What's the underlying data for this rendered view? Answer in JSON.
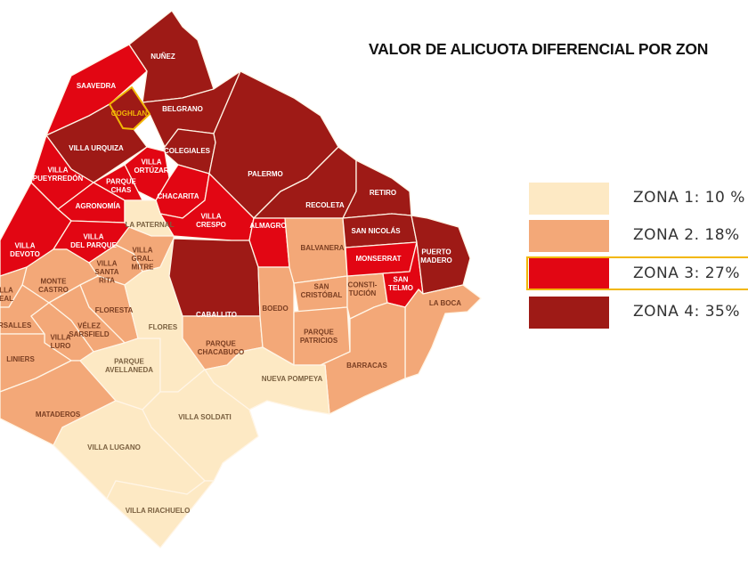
{
  "title": "VALOR DE ALICUOTA DIFERENCIAL POR ZON",
  "colors": {
    "zona_1": "#fde9c4",
    "zona_2": "#f3a878",
    "zona_3": "#e20613",
    "zona_4": "#9e1a16",
    "highlight": "#f2b705"
  },
  "legend": [
    {
      "label": "ZONA 1: 10 %",
      "zone": 1
    },
    {
      "label": "ZONA 2. 18%",
      "zone": 2
    },
    {
      "label": "ZONA 3: 27%",
      "zone": 3,
      "highlighted": true
    },
    {
      "label": "ZONA 4: 35%",
      "zone": 4
    }
  ],
  "districts": [
    {
      "name": "NUÑEZ",
      "lines": [
        "NUÑEZ"
      ],
      "zone": 4
    },
    {
      "name": "SAAVEDRA",
      "lines": [
        "SAAVEDRA"
      ],
      "zone": 3
    },
    {
      "name": "BELGRANO",
      "lines": [
        "BELGRANO"
      ],
      "zone": 4
    },
    {
      "name": "VILLA URQUIZA",
      "lines": [
        "VILLA URQUIZA"
      ],
      "zone": 4
    },
    {
      "name": "COLEGIALES",
      "lines": [
        "COLEGIALES"
      ],
      "zone": 4
    },
    {
      "name": "PALERMO",
      "lines": [
        "PALERMO"
      ],
      "zone": 4
    },
    {
      "name": "RECOLETA",
      "lines": [
        "RECOLETA"
      ],
      "zone": 4
    },
    {
      "name": "RETIRO",
      "lines": [
        "RETIRO"
      ],
      "zone": 4
    },
    {
      "name": "VILLA PUEYRREDÓN",
      "lines": [
        "VILLA",
        "PUEYRREDÓN"
      ],
      "zone": 3
    },
    {
      "name": "VILLA ORTÚZAR",
      "lines": [
        "VILLA",
        "ORTÚZAR"
      ],
      "zone": 3
    },
    {
      "name": "PARQUE CHAS",
      "lines": [
        "PARQUE",
        "CHAS"
      ],
      "zone": 3
    },
    {
      "name": "AGRONOMÍA",
      "lines": [
        "AGRONOMÍA"
      ],
      "zone": 3
    },
    {
      "name": "CHACARITA",
      "lines": [
        "CHACARITA"
      ],
      "zone": 3
    },
    {
      "name": "LA PATERNAL",
      "lines": [
        "LA PATERNAL"
      ],
      "zone": 1
    },
    {
      "name": "VILLA CRESPO",
      "lines": [
        "VILLA",
        "CRESPO"
      ],
      "zone": 3
    },
    {
      "name": "ALMAGRO",
      "lines": [
        "ALMAGRO"
      ],
      "zone": 3
    },
    {
      "name": "VILLA DEVOTO",
      "lines": [
        "VILLA",
        "DEVOTO"
      ],
      "zone": 3
    },
    {
      "name": "VILLA DEL PARQUE",
      "lines": [
        "VILLA",
        "DEL PARQUE"
      ],
      "zone": 3
    },
    {
      "name": "VILLA GRAL. MITRE",
      "lines": [
        "VILLA",
        "GRAL.",
        "MITRE"
      ],
      "zone": 2
    },
    {
      "name": "VILLA SANTA RITA",
      "lines": [
        "VILLA",
        "SANTA",
        "RITA"
      ],
      "zone": 2
    },
    {
      "name": "MONTE CASTRO",
      "lines": [
        "MONTE",
        "CASTRO"
      ],
      "zone": 2
    },
    {
      "name": "VILLA REAL",
      "lines": [
        "LLA",
        "EAL"
      ],
      "zone": 2
    },
    {
      "name": "VERSALLES",
      "lines": [
        "ERSALLES"
      ],
      "zone": 2
    },
    {
      "name": "FLORESTA",
      "lines": [
        "FLORESTA"
      ],
      "zone": 2
    },
    {
      "name": "VÉLEZ SARSFIELD",
      "lines": [
        "VÉLEZ",
        "SARSFIELD"
      ],
      "zone": 2
    },
    {
      "name": "VILLA LURO",
      "lines": [
        "VILLA",
        "LURO"
      ],
      "zone": 2
    },
    {
      "name": "LINIERS",
      "lines": [
        "LINIERS"
      ],
      "zone": 2
    },
    {
      "name": "MATADEROS",
      "lines": [
        "MATADEROS"
      ],
      "zone": 2
    },
    {
      "name": "PARQUE AVELLANEDA",
      "lines": [
        "PARQUE",
        "AVELLANEDA"
      ],
      "zone": 1
    },
    {
      "name": "FLORES",
      "lines": [
        "FLORES"
      ],
      "zone": 1
    },
    {
      "name": "CABALLITO",
      "lines": [
        "CABALLITO"
      ],
      "zone": 4
    },
    {
      "name": "PARQUE CHACABUCO",
      "lines": [
        "PARQUE",
        "CHACABUCO"
      ],
      "zone": 2
    },
    {
      "name": "BOEDO",
      "lines": [
        "BOEDO"
      ],
      "zone": 2
    },
    {
      "name": "BALVANERA",
      "lines": [
        "BALVANERA"
      ],
      "zone": 2
    },
    {
      "name": "SAN CRISTÓBAL",
      "lines": [
        "SAN",
        "CRISTÓBAL"
      ],
      "zone": 2
    },
    {
      "name": "PARQUE PATRICIOS",
      "lines": [
        "PARQUE",
        "PATRICIOS"
      ],
      "zone": 2
    },
    {
      "name": "CONSTITUCIÓN",
      "lines": [
        "CONSTI-",
        "TUCIÓN"
      ],
      "zone": 2
    },
    {
      "name": "SAN NICOLÁS",
      "lines": [
        "SAN NICOLÁS"
      ],
      "zone": 4
    },
    {
      "name": "MONSERRAT",
      "lines": [
        "MONSERRAT"
      ],
      "zone": 3
    },
    {
      "name": "SAN TELMO",
      "lines": [
        "SAN",
        "TELMO"
      ],
      "zone": 3
    },
    {
      "name": "PUERTO MADERO",
      "lines": [
        "PUERTO",
        "MADERO"
      ],
      "zone": 4
    },
    {
      "name": "LA BOCA",
      "lines": [
        "LA BOCA"
      ],
      "zone": 2
    },
    {
      "name": "BARRACAS",
      "lines": [
        "BARRACAS"
      ],
      "zone": 2
    },
    {
      "name": "NUEVA POMPEYA",
      "lines": [
        "NUEVA POMPEYA"
      ],
      "zone": 1
    },
    {
      "name": "VILLA SOLDATI",
      "lines": [
        "VILLA SOLDATI"
      ],
      "zone": 1
    },
    {
      "name": "VILLA LUGANO",
      "lines": [
        "VILLA LUGANO"
      ],
      "zone": 1
    },
    {
      "name": "VILLA RIACHUELO",
      "lines": [
        "VILLA RIACHUELO"
      ],
      "zone": 1
    },
    {
      "name": "COGHLAN",
      "lines": [
        "COGHLAN"
      ],
      "zone": 4,
      "highlighted": true
    }
  ]
}
